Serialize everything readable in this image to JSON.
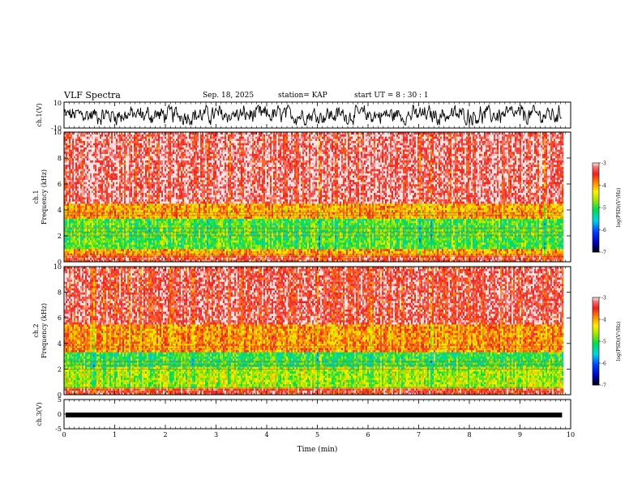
{
  "header": {
    "title": "VLF Spectra",
    "date": "Sep. 18, 2025",
    "station": "station= KAP",
    "start_ut": "start  UT  =   8  : 30 : 1"
  },
  "chart_data": [
    {
      "type": "line",
      "name": "ch1-waveform",
      "ylabel": "ch.1(V)",
      "ylim": [
        -10,
        10
      ],
      "ytick_labels": [
        "10",
        "-10"
      ],
      "description_of_series": "noisy waveform around 0 V",
      "x_range_min": [
        0,
        9.83
      ]
    },
    {
      "type": "heatmap",
      "name": "ch1-spectrogram",
      "ylabel": "ch.1\nFrequency  (kHz)",
      "ylim": [
        0,
        10
      ],
      "ytick_labels": [
        "0",
        "2",
        "4",
        "6",
        "8",
        "10"
      ],
      "xlim": [
        0,
        10
      ],
      "data_x_end_min": 9.83,
      "colorbar": {
        "label": "log(PSD)(V²/Hz)",
        "range": [
          -7,
          -3
        ],
        "tick_labels": [
          "-3",
          "-4",
          "-5",
          "-6",
          "-7"
        ]
      },
      "bands": [
        {
          "f_lo": 0.0,
          "f_hi": 0.5,
          "level": -3.4
        },
        {
          "f_lo": 0.5,
          "f_hi": 1.0,
          "level": -4.0
        },
        {
          "f_lo": 1.0,
          "f_hi": 3.4,
          "level": -4.9
        },
        {
          "f_lo": 3.4,
          "f_hi": 4.5,
          "level": -4.0
        },
        {
          "f_lo": 4.5,
          "f_hi": 10.0,
          "level": -3.2
        }
      ]
    },
    {
      "type": "heatmap",
      "name": "ch2-spectrogram",
      "ylabel": "ch.2\nFrequency  (kHz)",
      "ylim": [
        0,
        10
      ],
      "ytick_labels": [
        "0",
        "2",
        "4",
        "6",
        "8",
        "10"
      ],
      "xlim": [
        0,
        10
      ],
      "data_x_end_min": 9.83,
      "colorbar": {
        "label": "log(PSD)(V²/Hz)",
        "range": [
          -7,
          -3
        ],
        "tick_labels": [
          "-3",
          "-4",
          "-5",
          "-6",
          "-7"
        ]
      },
      "bands": [
        {
          "f_lo": 0.0,
          "f_hi": 0.5,
          "level": -3.4
        },
        {
          "f_lo": 0.5,
          "f_hi": 2.2,
          "level": -4.6
        },
        {
          "f_lo": 2.2,
          "f_hi": 3.3,
          "level": -5.0
        },
        {
          "f_lo": 3.3,
          "f_hi": 5.5,
          "level": -3.9
        },
        {
          "f_lo": 5.5,
          "f_hi": 10.0,
          "level": -3.3
        }
      ]
    },
    {
      "type": "line",
      "name": "ch3-waveform",
      "ylabel": "ch.3(V)",
      "ylim": [
        -5,
        5
      ],
      "ytick_labels": [
        "5",
        "0",
        "-5"
      ],
      "level_v": -0.3,
      "x_range_min": [
        0,
        9.83
      ]
    }
  ],
  "xaxis": {
    "label": "Time  (min)",
    "ticks": [
      0,
      1,
      2,
      3,
      4,
      5,
      6,
      7,
      8,
      9,
      10
    ],
    "tick_labels": [
      "0",
      "1",
      "2",
      "3",
      "4",
      "5",
      "6",
      "7",
      "8",
      "9",
      "10"
    ]
  }
}
